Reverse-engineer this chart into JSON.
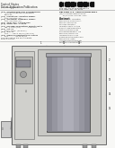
{
  "page_bg": "#f8f8f6",
  "text_color": "#444444",
  "dark_text": "#222222",
  "line_color": "#666666",
  "barcode_color": "#111111",
  "device_outer": "#d8d8d4",
  "device_edge": "#555555",
  "inner_panel": "#c8c8c4",
  "column_dark": "#888890",
  "column_mid": "#aaaab0",
  "column_light": "#c0c0c8",
  "column_highlight": "#d4d4dc",
  "left_panel": "#d0d0cc",
  "ctrl_box": "#b8b8b4",
  "ext_box": "#cccccc",
  "feet_color": "#999999",
  "top_sep_color": "#aaaaaa",
  "mid_sep_color": "#bbbbbb"
}
